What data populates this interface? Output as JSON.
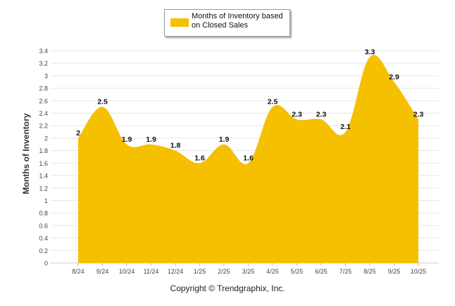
{
  "legend": {
    "label": "Months of Inventory based on Closed Sales",
    "color": "#f5c000"
  },
  "copyright": "Copyright © Trendgraphix, Inc.",
  "chart_data": {
    "type": "area",
    "title": "",
    "xlabel": "",
    "ylabel": "Months of Inventory",
    "ylim": [
      0,
      3.4
    ],
    "yticks": [
      0,
      0.2,
      0.4,
      0.6,
      0.8,
      1,
      1.2,
      1.4,
      1.6,
      1.8,
      2,
      2.2,
      2.4,
      2.6,
      2.8,
      3,
      3.2,
      3.4
    ],
    "categories": [
      "8/24",
      "9/24",
      "10/24",
      "11/24",
      "12/24",
      "1/25",
      "2/25",
      "3/25",
      "4/25",
      "5/25",
      "6/25",
      "7/25",
      "8/25",
      "9/25",
      "10/25"
    ],
    "series": [
      {
        "name": "Months of Inventory based on Closed Sales",
        "color": "#f5c000",
        "values": [
          2,
          2.5,
          1.9,
          1.9,
          1.8,
          1.6,
          1.9,
          1.6,
          2.5,
          2.3,
          2.3,
          2.1,
          3.3,
          2.9,
          2.3
        ]
      }
    ],
    "grid": true,
    "legend_position": "top-center"
  }
}
